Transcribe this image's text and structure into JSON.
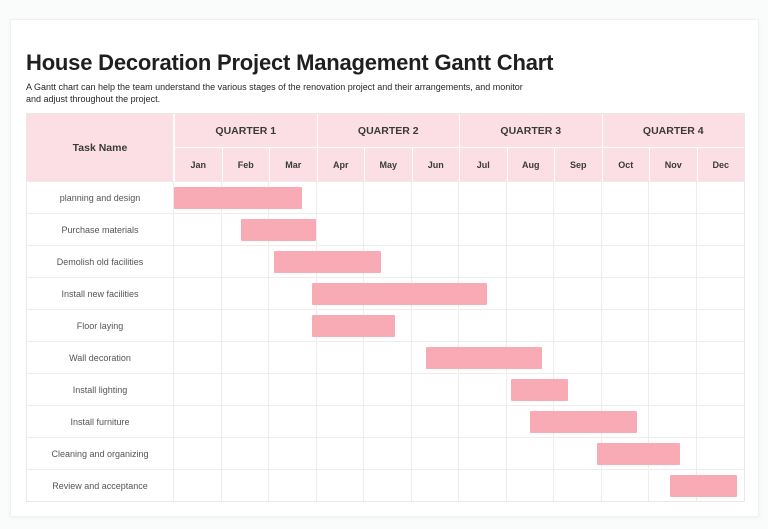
{
  "page": {
    "title": "House Decoration Project Management Gantt Chart",
    "subtitle_line1": "A Gantt chart can help the team understand the various stages of the renovation project and their arrangements, and monitor",
    "subtitle_line2": "and adjust throughout the project."
  },
  "table": {
    "task_col_header": "Task Name",
    "quarters": [
      "QUARTER 1",
      "QUARTER 2",
      "QUARTER 3",
      "QUARTER 4"
    ],
    "months": [
      "Jan",
      "Feb",
      "Mar",
      "Apr",
      "May",
      "Jun",
      "Jul",
      "Aug",
      "Sep",
      "Oct",
      "Nov",
      "Dec"
    ]
  },
  "colors": {
    "bar": "#f9abb5",
    "header_bg": "#fbdfe4",
    "grid": "#ededed"
  },
  "chart_data": {
    "type": "bar",
    "subtype": "gantt-horizontal",
    "title": "House Decoration Project Management Gantt Chart",
    "x_axis": {
      "unit": "months",
      "range": [
        0,
        12
      ],
      "tick_labels": [
        "Jan",
        "Feb",
        "Mar",
        "Apr",
        "May",
        "Jun",
        "Jul",
        "Aug",
        "Sep",
        "Oct",
        "Nov",
        "Dec"
      ],
      "groups": [
        "QUARTER 1",
        "QUARTER 2",
        "QUARTER 3",
        "QUARTER 4"
      ]
    },
    "tasks": [
      {
        "name": "planning and design",
        "start_month": 0.0,
        "end_month": 2.7
      },
      {
        "name": "Purchase materials",
        "start_month": 1.4,
        "end_month": 3.0
      },
      {
        "name": "Demolish old facilities",
        "start_month": 2.1,
        "end_month": 4.35
      },
      {
        "name": "Install new facilities",
        "start_month": 2.9,
        "end_month": 6.6
      },
      {
        "name": "Floor laying",
        "start_month": 2.9,
        "end_month": 4.65
      },
      {
        "name": "Wall decoration",
        "start_month": 5.3,
        "end_month": 7.75
      },
      {
        "name": "Install lighting",
        "start_month": 7.1,
        "end_month": 8.3
      },
      {
        "name": "Install furniture",
        "start_month": 7.5,
        "end_month": 9.75
      },
      {
        "name": "Cleaning and organizing",
        "start_month": 8.9,
        "end_month": 10.65
      },
      {
        "name": "Review and acceptance",
        "start_month": 10.45,
        "end_month": 11.85
      }
    ]
  }
}
